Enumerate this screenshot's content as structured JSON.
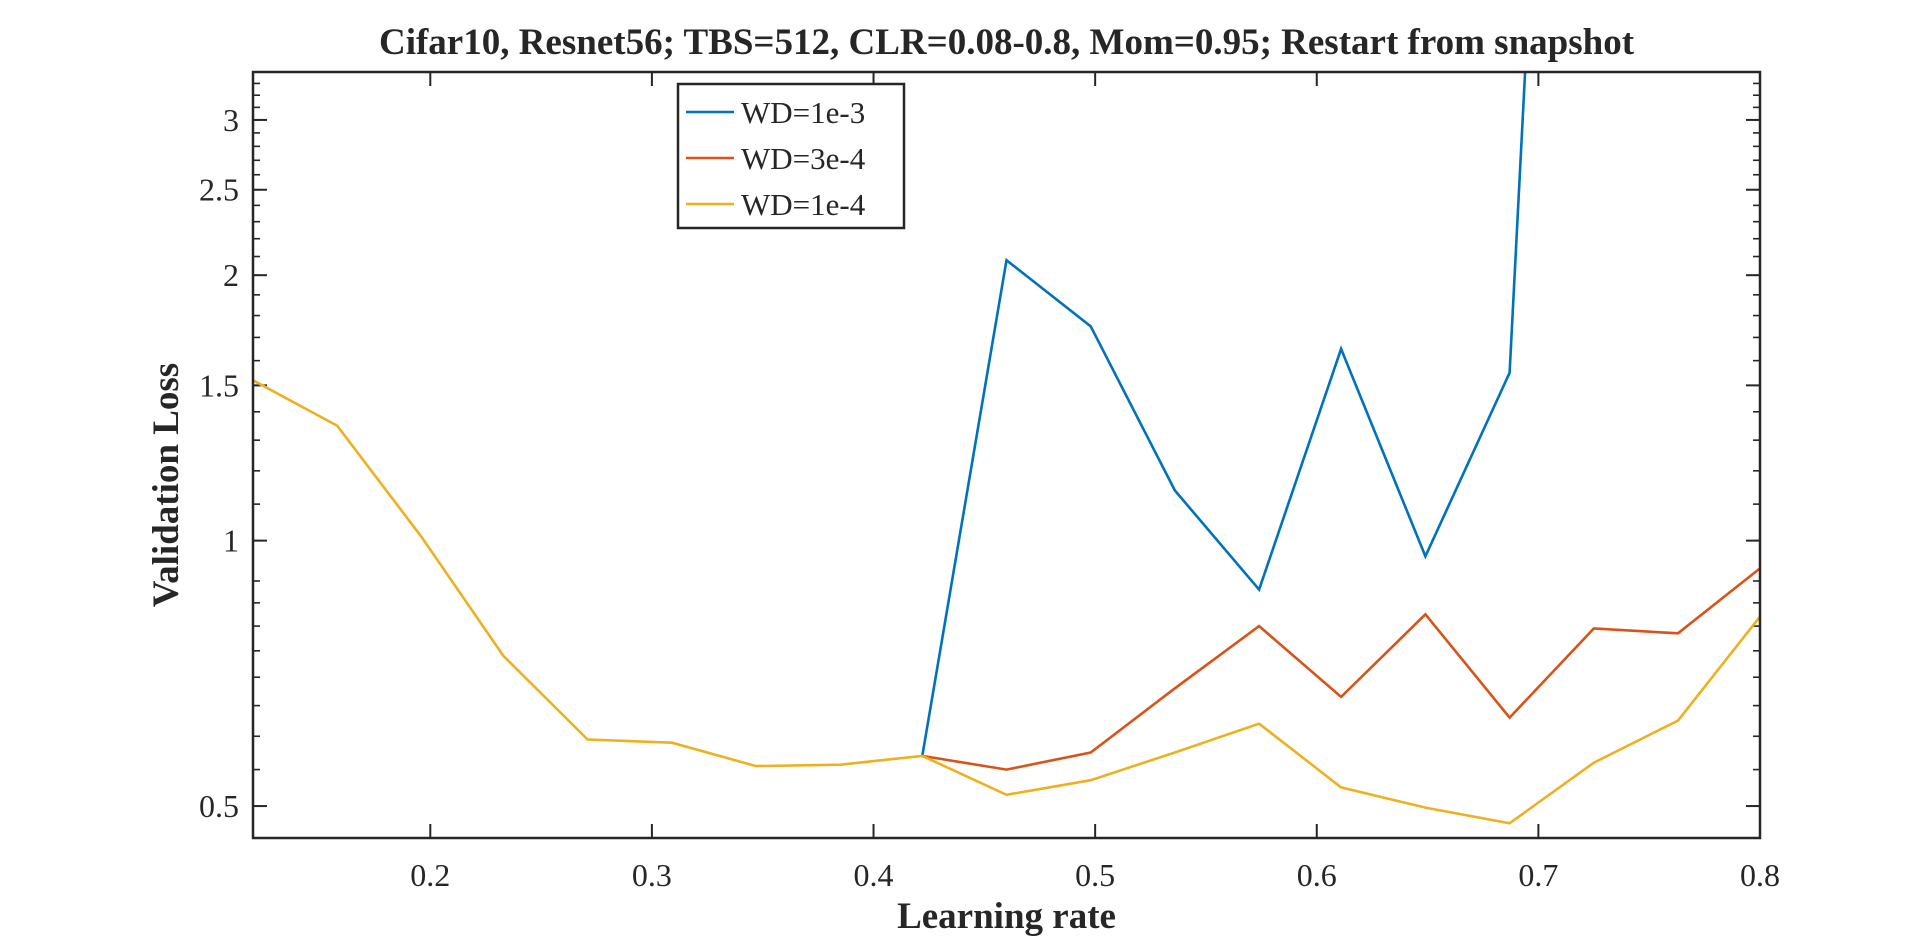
{
  "chart_data": {
    "type": "line",
    "title": "Cifar10, Resnet56; TBS=512, CLR=0.08-0.8, Mom=0.95; Restart from snapshot",
    "xlabel": "Learning rate",
    "ylabel": "Validation Loss",
    "xlim": [
      0.12,
      0.8
    ],
    "ylim": [
      0.46,
      3.4
    ],
    "y_scale": "log",
    "x_ticks": [
      0.2,
      0.3,
      0.4,
      0.5,
      0.6,
      0.7,
      0.8
    ],
    "x_tick_labels": [
      "0.2",
      "0.3",
      "0.4",
      "0.5",
      "0.6",
      "0.7",
      "0.8"
    ],
    "y_ticks": [
      0.5,
      1,
      1.5,
      2,
      2.5,
      3
    ],
    "y_tick_labels": [
      "0.5",
      "1",
      "1.5",
      "2",
      "2.5",
      "3"
    ],
    "legend_position": "top-center",
    "grid": false,
    "box": true,
    "series": [
      {
        "name": "WD=1e-3",
        "color": "#0072BD",
        "x": [
          0.422,
          0.46,
          0.498,
          0.536,
          0.574,
          0.611,
          0.649,
          0.687,
          0.694
        ],
        "y": [
          0.57,
          2.08,
          1.75,
          1.14,
          0.88,
          1.65,
          0.96,
          1.55,
          3.4
        ]
      },
      {
        "name": "WD=3e-4",
        "color": "#D95319",
        "x": [
          0.422,
          0.46,
          0.498,
          0.536,
          0.574,
          0.611,
          0.649,
          0.687,
          0.725,
          0.763,
          0.8
        ],
        "y": [
          0.57,
          0.55,
          0.575,
          0.68,
          0.8,
          0.665,
          0.825,
          0.63,
          0.795,
          0.785,
          0.93
        ]
      },
      {
        "name": "WD=1e-4",
        "color": "#EDB120",
        "x": [
          0.12,
          0.158,
          0.196,
          0.233,
          0.271,
          0.309,
          0.347,
          0.385,
          0.422,
          0.46,
          0.498,
          0.536,
          0.574,
          0.611,
          0.649,
          0.687,
          0.725,
          0.763,
          0.8
        ],
        "y": [
          1.52,
          1.35,
          1.01,
          0.74,
          0.595,
          0.59,
          0.555,
          0.557,
          0.57,
          0.515,
          0.535,
          0.575,
          0.62,
          0.525,
          0.498,
          0.478,
          0.56,
          0.625,
          0.82
        ]
      }
    ]
  }
}
